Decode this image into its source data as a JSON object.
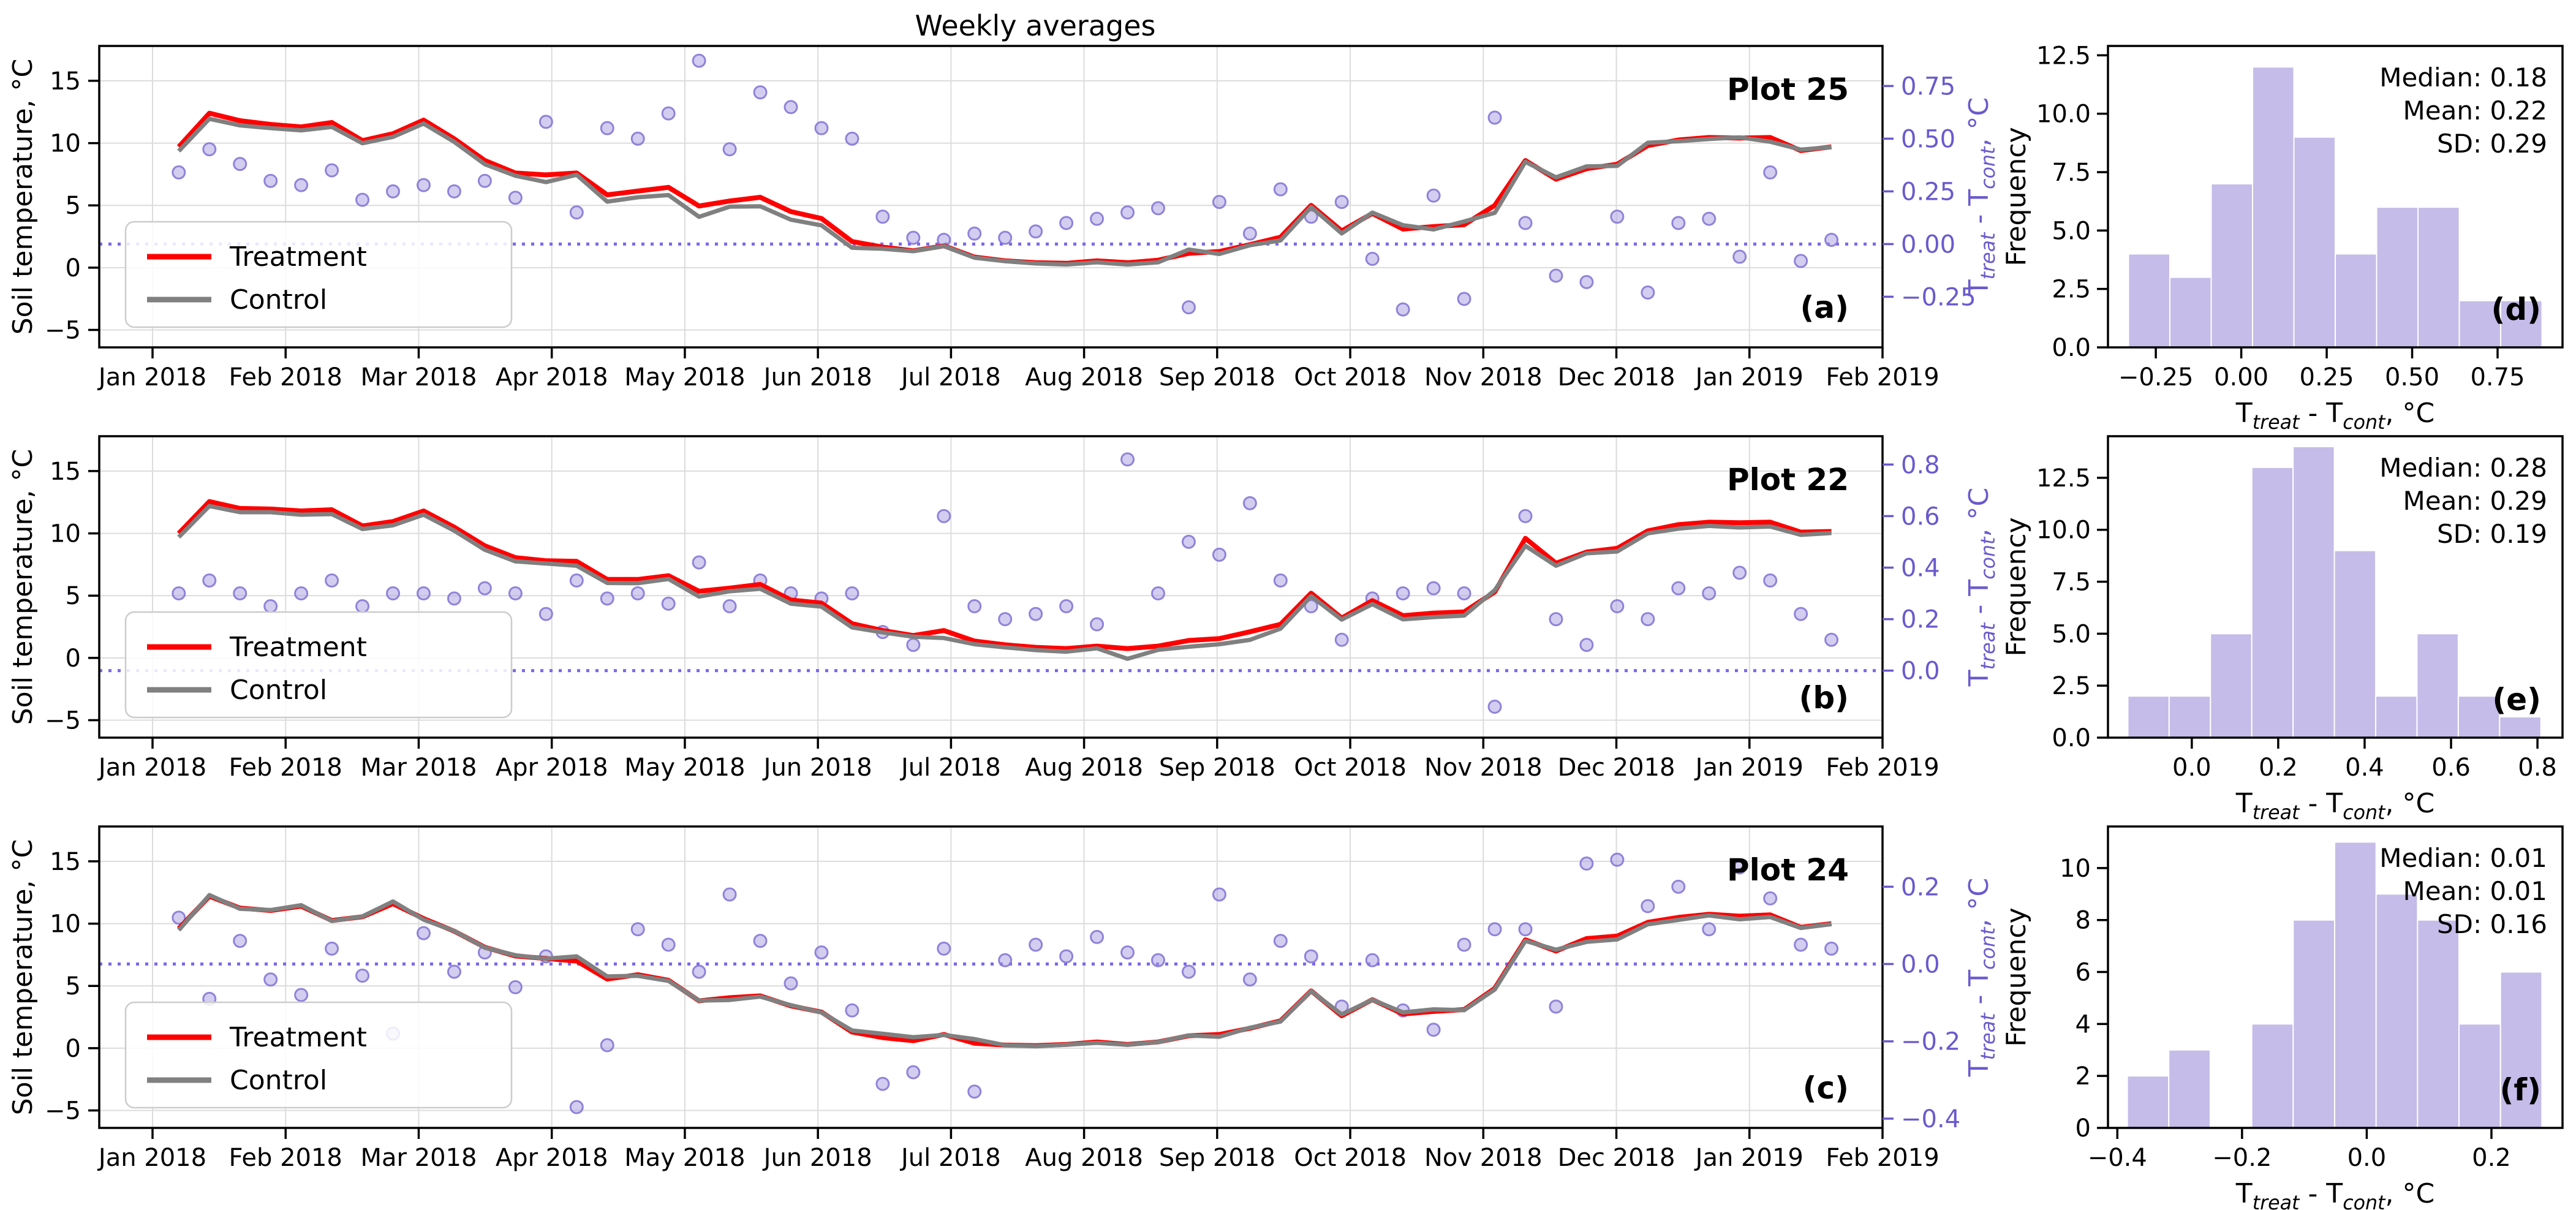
{
  "title": "Weekly averages",
  "colors": {
    "treatment": "#ff0000",
    "control": "#808080",
    "diff_accent": "#6a5acd",
    "zero_line": "#7b68ee",
    "scatter_fill": "#a79cdf",
    "scatter_edge": "#8678d6",
    "hist_fill": "#c5bce9",
    "grid": "#dcdcdc",
    "text": "#000000"
  },
  "legend": {
    "treatment_label": "Treatment",
    "control_label": "Control"
  },
  "axes": {
    "x_tick_labels": [
      "Jan 2018",
      "Feb 2018",
      "Mar 2018",
      "Apr 2018",
      "May 2018",
      "Jun 2018",
      "Jul 2018",
      "Aug 2018",
      "Sep 2018",
      "Oct 2018",
      "Nov 2018",
      "Dec 2018",
      "Jan 2019",
      "Feb 2019"
    ],
    "left_axis_label": "Soil temperature, °C",
    "left_ticks": {
      "labels": [
        "15",
        "10",
        "5",
        "0",
        "−5"
      ],
      "values": [
        15,
        10,
        5,
        0,
        -5
      ]
    },
    "right_axis_label_parts": {
      "t1": "T",
      "s1": "treat",
      "t2": " - T",
      "s2": "cont",
      "t3": ", °C"
    },
    "hist_y_label": "Frequency"
  },
  "chart_data": [
    {
      "type": "line",
      "panel": "a",
      "plot_label": "Plot 25",
      "corner_label": "(a)",
      "x_mode": "weekly",
      "start_day_offset_days": 6,
      "step_days": 7,
      "weeks": 55,
      "ylim_left": [
        -6.4,
        17.8
      ],
      "ylim_right": [
        -0.49,
        0.94
      ],
      "right_ticks": {
        "labels": [
          "0.75",
          "0.50",
          "0.25",
          "0.00",
          "−0.25"
        ],
        "values": [
          0.75,
          0.5,
          0.25,
          0.0,
          -0.25
        ]
      },
      "treatment": [
        9.7,
        12.4,
        11.8,
        11.5,
        11.3,
        11.65,
        10.2,
        10.75,
        11.85,
        10.35,
        8.6,
        7.6,
        7.45,
        7.6,
        5.85,
        6.15,
        6.45,
        4.95,
        5.35,
        5.65,
        4.5,
        3.95,
        2.1,
        1.65,
        1.35,
        1.75,
        0.85,
        0.55,
        0.4,
        0.35,
        0.55,
        0.4,
        0.6,
        1.15,
        1.3,
        1.85,
        2.45,
        5.0,
        2.95,
        4.35,
        3.1,
        3.3,
        3.45,
        5.0,
        8.6,
        7.1,
        7.95,
        8.3,
        9.8,
        10.25,
        10.45,
        10.4,
        10.45,
        9.4,
        9.7
      ],
      "diff_scatter": [
        0.34,
        0.45,
        0.38,
        0.3,
        0.28,
        0.35,
        0.21,
        0.25,
        0.28,
        0.25,
        0.3,
        0.22,
        0.58,
        0.15,
        0.55,
        0.5,
        0.62,
        0.87,
        0.45,
        0.72,
        0.65,
        0.55,
        0.5,
        0.13,
        0.03,
        0.02,
        0.05,
        0.03,
        0.06,
        0.1,
        0.12,
        0.15,
        0.17,
        -0.3,
        0.2,
        0.05,
        0.26,
        0.13,
        0.2,
        -0.07,
        -0.31,
        0.23,
        -0.26,
        0.6,
        0.1,
        -0.15,
        -0.18,
        0.13,
        -0.23,
        0.1,
        0.12,
        -0.06,
        0.34,
        -0.08,
        0.02
      ]
    },
    {
      "type": "line",
      "panel": "b",
      "plot_label": "Plot 22",
      "corner_label": "(b)",
      "x_mode": "weekly",
      "start_day_offset_days": 6,
      "step_days": 7,
      "weeks": 55,
      "ylim_left": [
        -6.4,
        17.8
      ],
      "ylim_right": [
        -0.26,
        0.91
      ],
      "right_ticks": {
        "labels": [
          "0.8",
          "0.6",
          "0.4",
          "0.2",
          "0.0"
        ],
        "values": [
          0.8,
          0.6,
          0.4,
          0.2,
          0.0
        ]
      },
      "treatment": [
        10.0,
        12.55,
        12.0,
        11.95,
        11.8,
        11.9,
        10.6,
        10.95,
        11.8,
        10.5,
        9.0,
        8.05,
        7.8,
        7.75,
        6.3,
        6.3,
        6.6,
        5.35,
        5.6,
        5.9,
        4.65,
        4.4,
        2.75,
        2.2,
        1.8,
        2.2,
        1.35,
        1.05,
        0.85,
        0.75,
        0.95,
        0.75,
        0.95,
        1.4,
        1.55,
        2.1,
        2.7,
        5.2,
        3.2,
        4.6,
        3.4,
        3.6,
        3.7,
        5.3,
        9.6,
        7.6,
        8.5,
        8.8,
        10.2,
        10.7,
        10.9,
        10.85,
        10.9,
        10.1,
        10.15
      ],
      "diff_scatter": [
        0.3,
        0.35,
        0.3,
        0.25,
        0.3,
        0.35,
        0.25,
        0.3,
        0.3,
        0.28,
        0.32,
        0.3,
        0.22,
        0.35,
        0.28,
        0.3,
        0.26,
        0.42,
        0.25,
        0.35,
        0.3,
        0.28,
        0.3,
        0.15,
        0.1,
        0.6,
        0.25,
        0.2,
        0.22,
        0.25,
        0.18,
        0.82,
        0.3,
        0.5,
        0.45,
        0.65,
        0.35,
        0.25,
        0.12,
        0.28,
        0.3,
        0.32,
        0.3,
        -0.14,
        0.6,
        0.2,
        0.1,
        0.25,
        0.2,
        0.32,
        0.3,
        0.38,
        0.35,
        0.22,
        0.12
      ]
    },
    {
      "type": "line",
      "panel": "c",
      "plot_label": "Plot 24",
      "corner_label": "(c)",
      "x_mode": "weekly",
      "start_day_offset_days": 6,
      "step_days": 7,
      "weeks": 55,
      "ylim_left": [
        -6.4,
        17.8
      ],
      "ylim_right": [
        -0.424,
        0.356
      ],
      "right_ticks": {
        "labels": [
          "0.2",
          "0.0",
          "−0.2",
          "−0.4"
        ],
        "values": [
          0.2,
          0.0,
          -0.2,
          -0.4
        ]
      },
      "treatment": [
        9.6,
        12.2,
        11.25,
        11.05,
        11.4,
        10.25,
        10.55,
        11.6,
        10.4,
        9.4,
        8.1,
        7.4,
        7.2,
        7.0,
        5.55,
        5.9,
        5.45,
        3.8,
        4.05,
        4.2,
        3.4,
        2.9,
        1.3,
        0.85,
        0.6,
        1.1,
        0.4,
        0.25,
        0.2,
        0.3,
        0.5,
        0.3,
        0.5,
        1.0,
        1.1,
        1.6,
        2.2,
        4.6,
        2.6,
        3.9,
        2.75,
        2.95,
        3.1,
        4.8,
        8.7,
        7.8,
        8.8,
        9.0,
        10.1,
        10.5,
        10.75,
        10.6,
        10.7,
        9.7,
        10.0
      ],
      "diff_scatter": [
        0.12,
        -0.09,
        0.06,
        -0.04,
        -0.08,
        0.04,
        -0.03,
        -0.18,
        0.08,
        -0.02,
        0.03,
        -0.06,
        0.02,
        -0.37,
        -0.21,
        0.09,
        0.05,
        -0.02,
        0.18,
        0.06,
        -0.05,
        0.03,
        -0.12,
        -0.31,
        -0.28,
        0.04,
        -0.33,
        0.01,
        0.05,
        0.02,
        0.07,
        0.03,
        0.01,
        -0.02,
        0.18,
        -0.04,
        0.06,
        0.02,
        -0.11,
        0.01,
        -0.12,
        -0.17,
        0.05,
        0.09,
        0.09,
        -0.11,
        0.26,
        0.27,
        0.15,
        0.2,
        0.09,
        0.25,
        0.17,
        0.05,
        0.04
      ]
    },
    {
      "type": "histogram",
      "panel": "d",
      "corner_label": "(d)",
      "stats_lines": [
        "Median: 0.18",
        "Mean: 0.22",
        "SD: 0.29"
      ],
      "bin_start": -0.33,
      "bin_width": 0.121,
      "counts": [
        4,
        3,
        7,
        12,
        9,
        4,
        6,
        6,
        2,
        2
      ],
      "xlim": [
        -0.39,
        0.94
      ],
      "ylim": [
        0,
        12.9
      ],
      "x_ticks": {
        "labels": [
          "−0.25",
          "0.00",
          "0.25",
          "0.50",
          "0.75"
        ],
        "values": [
          -0.25,
          0.0,
          0.25,
          0.5,
          0.75
        ]
      },
      "y_ticks": {
        "labels": [
          "0.0",
          "2.5",
          "5.0",
          "7.5",
          "10.0",
          "12.5"
        ],
        "values": [
          0,
          2.5,
          5,
          7.5,
          10,
          12.5
        ]
      }
    },
    {
      "type": "histogram",
      "panel": "e",
      "corner_label": "(e)",
      "stats_lines": [
        "Median: 0.28",
        "Mean: 0.29",
        "SD: 0.19"
      ],
      "bin_start": -0.148,
      "bin_width": 0.0956,
      "counts": [
        2,
        2,
        5,
        13,
        14,
        9,
        2,
        5,
        2,
        1
      ],
      "xlim": [
        -0.194,
        0.858
      ],
      "ylim": [
        0,
        14.5
      ],
      "x_ticks": {
        "labels": [
          "0.0",
          "0.2",
          "0.4",
          "0.6",
          "0.8"
        ],
        "values": [
          0.0,
          0.2,
          0.4,
          0.6,
          0.8
        ]
      },
      "y_ticks": {
        "labels": [
          "0.0",
          "2.5",
          "5.0",
          "7.5",
          "10.0",
          "12.5"
        ],
        "values": [
          0,
          2.5,
          5,
          7.5,
          10,
          12.5
        ]
      }
    },
    {
      "type": "histogram",
      "panel": "f",
      "corner_label": "(f)",
      "stats_lines": [
        "Median: 0.01",
        "Mean: 0.01",
        "SD: 0.16"
      ],
      "bin_start": -0.384,
      "bin_width": 0.0665,
      "counts": [
        2,
        3,
        0,
        4,
        8,
        11,
        9,
        8,
        4,
        6
      ],
      "xlim": [
        -0.415,
        0.314
      ],
      "ylim": [
        0,
        11.6
      ],
      "x_ticks": {
        "labels": [
          "−0.4",
          "−0.2",
          "0.0",
          "0.2"
        ],
        "values": [
          -0.4,
          -0.2,
          0.0,
          0.2
        ]
      },
      "y_ticks": {
        "labels": [
          "0",
          "2",
          "4",
          "6",
          "8",
          "10"
        ],
        "values": [
          0,
          2,
          4,
          6,
          8,
          10
        ]
      }
    }
  ]
}
